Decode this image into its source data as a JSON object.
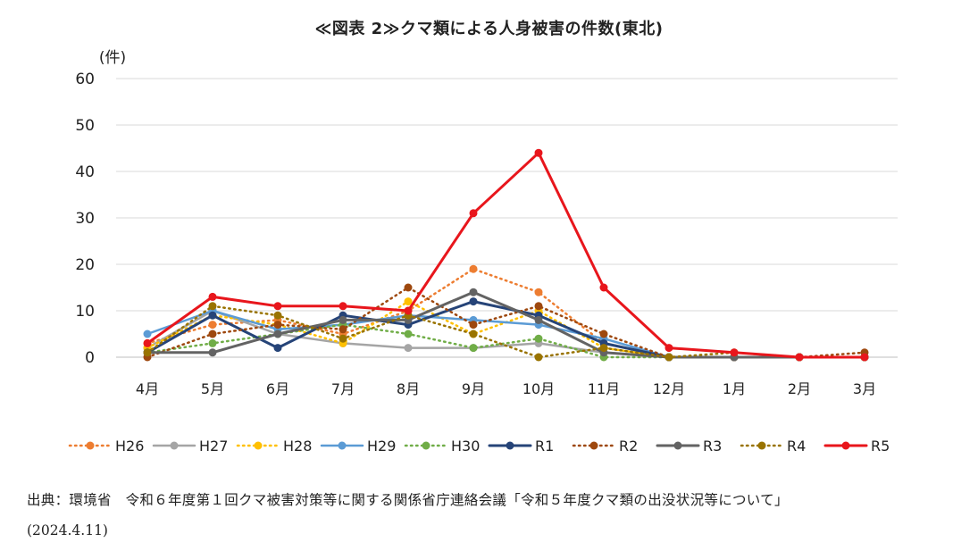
{
  "title": "≪図表 2≫クマ類による人身被害の件数(東北)",
  "source": "出典：環境省　令和６年度第１回クマ被害対策等に関する関係省庁連絡会議「令和５年度クマ類の出没状況等について」",
  "source_date": "(2024.4.11)",
  "chart_data": {
    "type": "line",
    "title": "≪図表 2≫クマ類による人身被害の件数(東北)",
    "ylabel": "(件)",
    "xlabel": "",
    "ylim": [
      0,
      60
    ],
    "yticks": [
      0,
      10,
      20,
      30,
      40,
      50,
      60
    ],
    "grid": true,
    "legend_position": "bottom",
    "categories": [
      "4月",
      "5月",
      "6月",
      "7月",
      "8月",
      "9月",
      "10月",
      "11月",
      "12月",
      "1月",
      "2月",
      "3月"
    ],
    "series": [
      {
        "name": "H26",
        "color": "#ED7D31",
        "dashed": true,
        "bold": false,
        "values": [
          3,
          7,
          8,
          5,
          10,
          19,
          14,
          3,
          0,
          0,
          0,
          0
        ]
      },
      {
        "name": "H27",
        "color": "#A5A5A5",
        "dashed": false,
        "bold": false,
        "values": [
          2,
          10,
          5,
          3,
          2,
          2,
          3,
          1,
          0,
          0,
          0,
          0
        ]
      },
      {
        "name": "H28",
        "color": "#FFC000",
        "dashed": true,
        "bold": false,
        "values": [
          2,
          9,
          7,
          3,
          12,
          5,
          10,
          2,
          0,
          0,
          0,
          0
        ]
      },
      {
        "name": "H29",
        "color": "#5B9BD5",
        "dashed": false,
        "bold": false,
        "values": [
          5,
          10,
          6,
          7,
          9,
          8,
          7,
          4,
          0,
          0,
          0,
          0
        ]
      },
      {
        "name": "H30",
        "color": "#70AD47",
        "dashed": true,
        "bold": false,
        "values": [
          1,
          3,
          5,
          7,
          5,
          2,
          4,
          0,
          0,
          0,
          0,
          0
        ]
      },
      {
        "name": "R1",
        "color": "#264478",
        "dashed": false,
        "bold": true,
        "values": [
          1,
          9,
          2,
          9,
          7,
          12,
          9,
          3,
          0,
          0,
          0,
          0
        ]
      },
      {
        "name": "R2",
        "color": "#9E480E",
        "dashed": true,
        "bold": false,
        "values": [
          0,
          5,
          7,
          6,
          15,
          7,
          11,
          5,
          0,
          0,
          0,
          1
        ]
      },
      {
        "name": "R3",
        "color": "#636363",
        "dashed": false,
        "bold": true,
        "values": [
          1,
          1,
          5,
          8,
          8,
          14,
          8,
          1,
          0,
          0,
          0,
          0
        ]
      },
      {
        "name": "R4",
        "color": "#997300",
        "dashed": true,
        "bold": false,
        "values": [
          1,
          11,
          9,
          4,
          9,
          5,
          0,
          2,
          0,
          1,
          0,
          0
        ]
      },
      {
        "name": "R5",
        "color": "#E8161C",
        "dashed": false,
        "bold": true,
        "values": [
          3,
          13,
          11,
          11,
          10,
          31,
          44,
          15,
          2,
          1,
          0,
          0
        ]
      }
    ]
  }
}
